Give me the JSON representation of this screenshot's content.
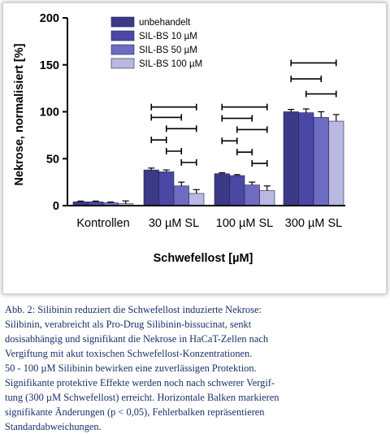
{
  "chart_data": {
    "type": "bar",
    "xlabel": "Schwefellost [µM]",
    "ylabel": "Nekrose, normalisiert [%]",
    "ylim": [
      0,
      200
    ],
    "yticks": [
      "0",
      "50",
      "100",
      "150",
      "200"
    ],
    "categories": [
      "Kontrollen",
      "30 µM SL",
      "100 µM SL",
      "300 µM SL"
    ],
    "series": [
      {
        "name": "unbehandelt",
        "color": "#3b3a87",
        "values": [
          4,
          38,
          34,
          100
        ],
        "errors": [
          0.8,
          2,
          1,
          2.5
        ]
      },
      {
        "name": "SIL-BS 10 µM",
        "color": "#4b48a5",
        "values": [
          4,
          36,
          32,
          99
        ],
        "errors": [
          0.8,
          2,
          1,
          4
        ]
      },
      {
        "name": "SIL-BS 50 µM",
        "color": "#6e6cc0",
        "values": [
          3,
          21,
          22,
          94
        ],
        "errors": [
          0.8,
          4,
          3,
          6
        ]
      },
      {
        "name": "SIL-BS 100 µM",
        "color": "#b9b8e0",
        "values": [
          2,
          13,
          16,
          90
        ],
        "errors": [
          3,
          4,
          5,
          7
        ]
      }
    ],
    "significance": [
      {
        "group": 1,
        "from": 0,
        "to": 3,
        "y": 105
      },
      {
        "group": 1,
        "from": 0,
        "to": 2,
        "y": 94
      },
      {
        "group": 1,
        "from": 1,
        "to": 3,
        "y": 82
      },
      {
        "group": 1,
        "from": 0,
        "to": 1,
        "y": 70
      },
      {
        "group": 1,
        "from": 1,
        "to": 2,
        "y": 58
      },
      {
        "group": 1,
        "from": 2,
        "to": 3,
        "y": 46
      },
      {
        "group": 2,
        "from": 0,
        "to": 3,
        "y": 105
      },
      {
        "group": 2,
        "from": 0,
        "to": 2,
        "y": 93
      },
      {
        "group": 2,
        "from": 1,
        "to": 3,
        "y": 81
      },
      {
        "group": 2,
        "from": 0,
        "to": 1,
        "y": 69
      },
      {
        "group": 2,
        "from": 1,
        "to": 2,
        "y": 57
      },
      {
        "group": 2,
        "from": 2,
        "to": 3,
        "y": 45
      },
      {
        "group": 3,
        "from": 0,
        "to": 3,
        "y": 152
      },
      {
        "group": 3,
        "from": 0,
        "to": 2,
        "y": 135
      },
      {
        "group": 3,
        "from": 1,
        "to": 3,
        "y": 119
      }
    ]
  },
  "caption": {
    "lines": [
      "Abb. 2: Silibinin reduziert die Schwefellost induzierte Nekrose:",
      "Silibinin, verabreicht als Pro-Drug Silibinin-bissucinat, senkt",
      "dosisabhängig und signifikant die Nekrose in HaCaT-Zellen nach",
      "Vergiftung mit akut toxischen Schwefellost-Konzentrationen.",
      "50 - 100 µM Silibinin bewirken eine zuverlässigen Protektion.",
      "Signifikante protektive Effekte werden noch nach schwerer Vergif-",
      "tung (300 µM Schwefellost) erreicht. Horizontale Balken markieren",
      "signifikante Änderungen (p < 0,05), Fehlerbalken repräsentieren",
      "Standardabweichungen."
    ]
  }
}
